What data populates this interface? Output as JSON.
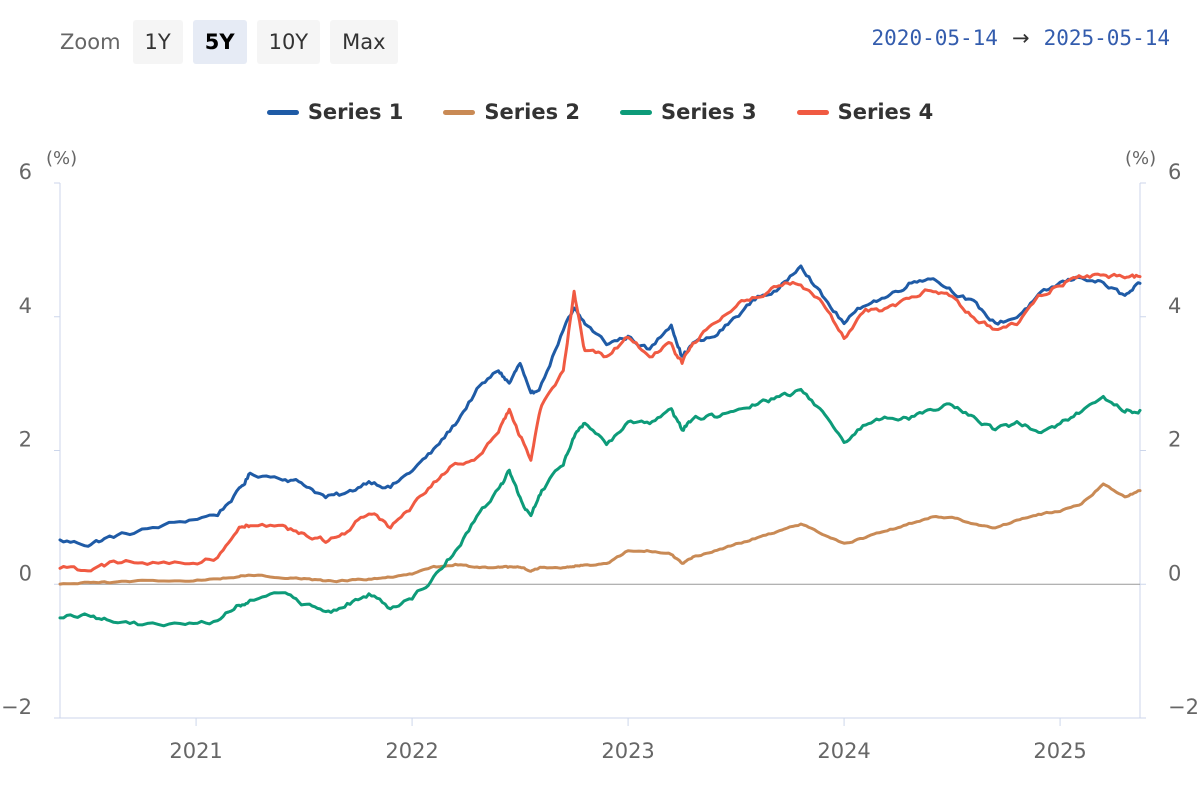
{
  "toolbar": {
    "zoom_label": "Zoom",
    "buttons": [
      {
        "label": "1Y",
        "active": false
      },
      {
        "label": "5Y",
        "active": true
      },
      {
        "label": "10Y",
        "active": false
      },
      {
        "label": "Max",
        "active": false
      }
    ]
  },
  "range": {
    "from": "2020-05-14",
    "arrow": "→",
    "to": "2025-05-14"
  },
  "colors": {
    "series1": "#1f5ba6",
    "series2": "#c98a55",
    "series3": "#0d9b79",
    "series4": "#f05a42",
    "axis_label": "#666666",
    "grid": "#e6e6e6",
    "zero_line": "#999999"
  },
  "chart_data": {
    "type": "line",
    "x_start": "2020-05-14",
    "x_end": "2025-05-14",
    "ylim": [
      -2,
      6
    ],
    "y_ticks": [
      -2,
      0,
      2,
      4,
      6
    ],
    "y_tick_labels": [
      "−2",
      "0",
      "2",
      "4",
      "6"
    ],
    "x_ticks": [
      2021,
      2022,
      2023,
      2024,
      2025
    ],
    "left_unit": "(%)",
    "right_unit": "(%)",
    "grid": false,
    "legend_position": "top-center",
    "x_years": [
      2020.37,
      2020.5,
      2020.6,
      2020.75,
      2020.95,
      2021.1,
      2021.2,
      2021.25,
      2021.4,
      2021.5,
      2021.6,
      2021.7,
      2021.8,
      2021.9,
      2022.0,
      2022.1,
      2022.2,
      2022.3,
      2022.4,
      2022.45,
      2022.5,
      2022.55,
      2022.6,
      2022.7,
      2022.75,
      2022.8,
      2022.9,
      2023.0,
      2023.1,
      2023.2,
      2023.25,
      2023.3,
      2023.4,
      2023.5,
      2023.6,
      2023.7,
      2023.8,
      2023.9,
      2024.0,
      2024.1,
      2024.2,
      2024.3,
      2024.4,
      2024.5,
      2024.6,
      2024.7,
      2024.8,
      2024.9,
      2025.0,
      2025.1,
      2025.2,
      2025.3,
      2025.37
    ],
    "series": [
      {
        "name": "Series 1",
        "color_key": "series1",
        "values": [
          0.65,
          0.6,
          0.7,
          0.8,
          0.95,
          1.05,
          1.4,
          1.65,
          1.6,
          1.5,
          1.3,
          1.35,
          1.55,
          1.45,
          1.7,
          2.0,
          2.4,
          2.9,
          3.2,
          3.0,
          3.3,
          2.8,
          3.0,
          3.8,
          4.1,
          3.9,
          3.6,
          3.7,
          3.5,
          3.9,
          3.4,
          3.6,
          3.7,
          4.0,
          4.3,
          4.4,
          4.8,
          4.3,
          3.9,
          4.2,
          4.3,
          4.5,
          4.6,
          4.4,
          4.2,
          3.9,
          4.0,
          4.3,
          4.5,
          4.6,
          4.5,
          4.3,
          4.5
        ]
      },
      {
        "name": "Series 2",
        "color_key": "series2",
        "values": [
          0.0,
          0.02,
          0.03,
          0.05,
          0.05,
          0.08,
          0.12,
          0.15,
          0.1,
          0.08,
          0.05,
          0.05,
          0.08,
          0.1,
          0.15,
          0.25,
          0.3,
          0.25,
          0.25,
          0.25,
          0.25,
          0.2,
          0.25,
          0.25,
          0.28,
          0.28,
          0.3,
          0.5,
          0.5,
          0.45,
          0.3,
          0.4,
          0.5,
          0.6,
          0.7,
          0.8,
          0.9,
          0.75,
          0.6,
          0.7,
          0.8,
          0.9,
          1.0,
          1.0,
          0.9,
          0.85,
          0.95,
          1.05,
          1.1,
          1.2,
          1.5,
          1.3,
          1.4
        ]
      },
      {
        "name": "Series 3",
        "color_key": "series3",
        "values": [
          -0.5,
          -0.45,
          -0.55,
          -0.6,
          -0.6,
          -0.55,
          -0.3,
          -0.25,
          -0.15,
          -0.3,
          -0.45,
          -0.3,
          -0.15,
          -0.35,
          -0.2,
          0.1,
          0.5,
          1.0,
          1.4,
          1.7,
          1.3,
          1.0,
          1.4,
          1.8,
          2.2,
          2.4,
          2.1,
          2.4,
          2.4,
          2.6,
          2.3,
          2.5,
          2.5,
          2.6,
          2.7,
          2.8,
          2.9,
          2.6,
          2.1,
          2.4,
          2.5,
          2.5,
          2.6,
          2.7,
          2.5,
          2.3,
          2.4,
          2.3,
          2.4,
          2.6,
          2.8,
          2.6,
          2.6
        ]
      },
      {
        "name": "Series 4",
        "color_key": "series4",
        "values": [
          0.25,
          0.2,
          0.3,
          0.35,
          0.3,
          0.4,
          0.85,
          0.9,
          0.85,
          0.75,
          0.65,
          0.8,
          1.1,
          0.85,
          1.15,
          1.5,
          1.8,
          1.9,
          2.3,
          2.6,
          2.2,
          1.9,
          2.7,
          3.2,
          4.4,
          3.5,
          3.4,
          3.7,
          3.4,
          3.6,
          3.3,
          3.6,
          3.9,
          4.2,
          4.3,
          4.5,
          4.5,
          4.2,
          3.7,
          4.1,
          4.1,
          4.3,
          4.4,
          4.3,
          4.0,
          3.8,
          3.9,
          4.3,
          4.5,
          4.6,
          4.6,
          4.6,
          4.6
        ]
      }
    ]
  }
}
